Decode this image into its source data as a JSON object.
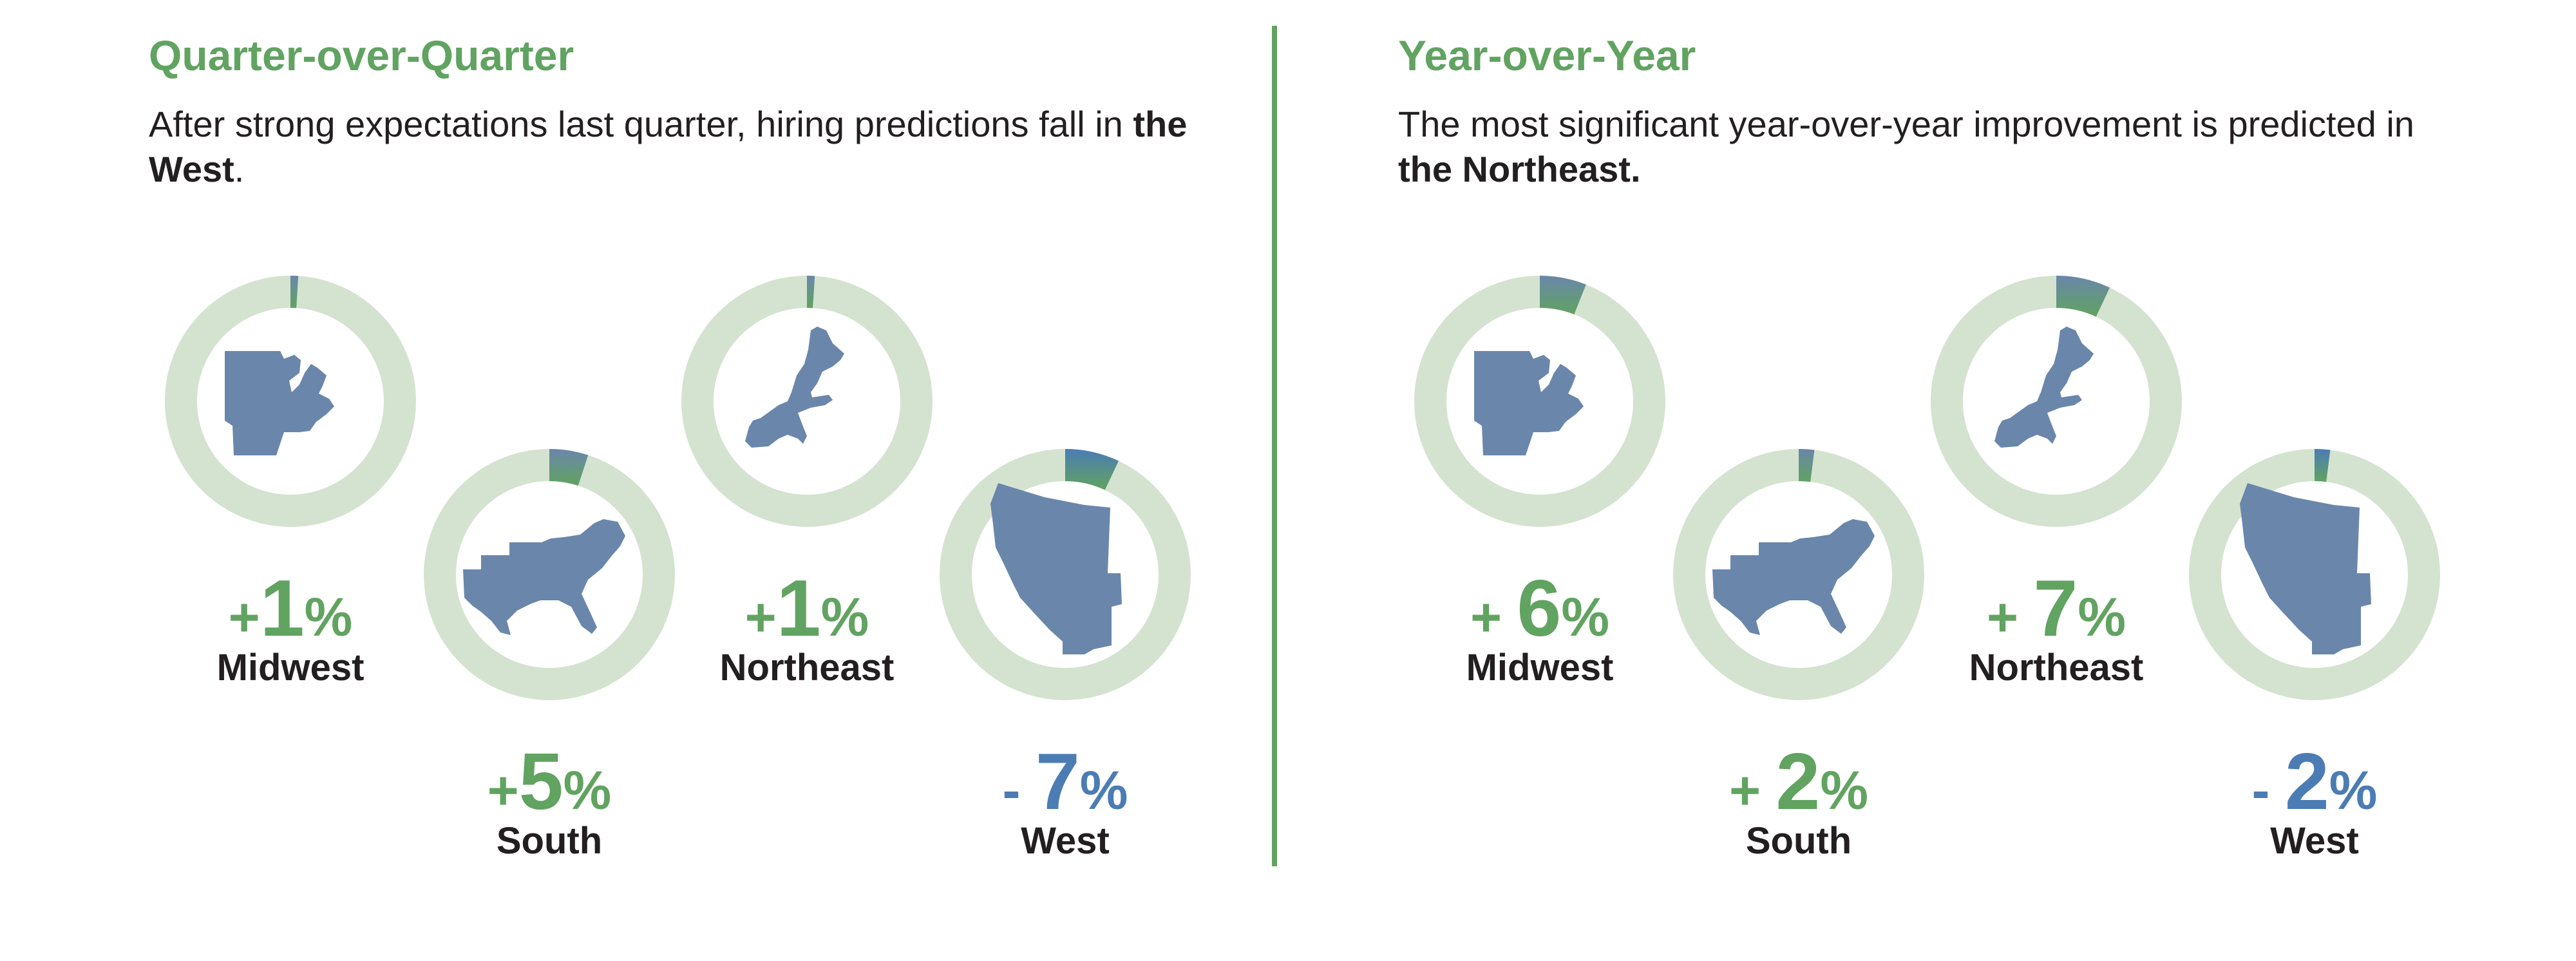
{
  "colors": {
    "accent_green": "#61a360",
    "negative_blue": "#4b7cb4",
    "ring_track": "#d4e3d0",
    "map_fill": "#6a86ab",
    "text_dark": "#231f20"
  },
  "chart_data": [
    {
      "type": "donut-group",
      "title": "Quarter-over-Quarter",
      "subtitle_plain": "After strong expectations last quarter, hiring predictions fall in ",
      "subtitle_bold": "the West",
      "subtitle_end": ".",
      "unit": "%",
      "regions": [
        {
          "name": "Midwest",
          "value": 1,
          "sign": "+",
          "number": "1",
          "percent": "%",
          "icon": "midwest-map-icon"
        },
        {
          "name": "South",
          "value": 5,
          "sign": "+",
          "number": "5",
          "percent": "%",
          "icon": "south-map-icon"
        },
        {
          "name": "Northeast",
          "value": 1,
          "sign": "+",
          "number": "1",
          "percent": "%",
          "icon": "northeast-map-icon"
        },
        {
          "name": "West",
          "value": -7,
          "sign": "- ",
          "number": "7",
          "percent": "%",
          "icon": "west-map-icon"
        }
      ]
    },
    {
      "type": "donut-group",
      "title": "Year-over-Year",
      "subtitle_plain": "The most significant year-over-year improvement is predicted in ",
      "subtitle_bold": "the Northeast.",
      "subtitle_end": "",
      "unit": "%",
      "regions": [
        {
          "name": "Midwest",
          "value": 6,
          "sign": "+ ",
          "number": "6",
          "percent": "%",
          "icon": "midwest-map-icon"
        },
        {
          "name": "South",
          "value": 2,
          "sign": "+ ",
          "number": "2",
          "percent": "%",
          "icon": "south-map-icon"
        },
        {
          "name": "Northeast",
          "value": 7,
          "sign": "+ ",
          "number": "7",
          "percent": "%",
          "icon": "northeast-map-icon"
        },
        {
          "name": "West",
          "value": -2,
          "sign": "- ",
          "number": "2",
          "percent": "%",
          "icon": "west-map-icon"
        }
      ]
    }
  ]
}
